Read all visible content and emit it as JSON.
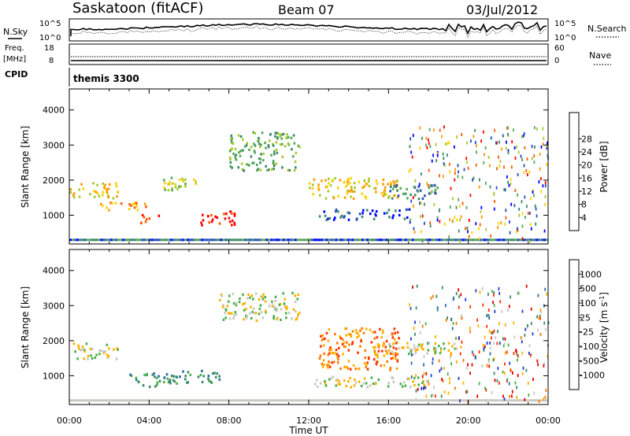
{
  "header": {
    "station": "Saskatoon (fitACF)",
    "beam": "Beam 07",
    "date": "03/Jul/2012"
  },
  "panels": {
    "nsky_label": "N.Sky",
    "nsearch_label": "N.Search",
    "noise_ticks": [
      "10^5",
      "10^0"
    ],
    "freq_label_line1": "Freq.",
    "freq_label_line2": "[MHz]",
    "freq_ticks": [
      "18",
      "8"
    ],
    "nave_ticks": [
      "60",
      "0"
    ],
    "nave_label": "Nave",
    "cpid_label": "CPID",
    "cpid_value": "themis 3300"
  },
  "chart_data": [
    {
      "type": "heatmap",
      "name": "power",
      "xlabel": "",
      "ylabel": "Slant Range [km]",
      "xlim": [
        0,
        24
      ],
      "ylim": [
        180,
        4600
      ],
      "x_ticks": [
        0,
        4,
        8,
        12,
        16,
        20,
        24
      ],
      "y_ticks": [
        1000,
        2000,
        3000,
        4000
      ],
      "colorbar": {
        "label": "Power [dB]",
        "ticks": [
          "4",
          "8",
          "12",
          "16",
          "20",
          "24",
          "28"
        ],
        "colors": [
          "#0000ff",
          "#2450b8",
          "#3a8a6a",
          "#55a855",
          "#a8c830",
          "#ffd000",
          "#ff9a00",
          "#ff5a00",
          "#ff0000"
        ]
      },
      "echo_bands": [
        {
          "t0": 0.0,
          "t1": 2.4,
          "r0": 1500,
          "r1": 1950,
          "level": 5
        },
        {
          "t0": 1.5,
          "t1": 4.0,
          "r0": 1150,
          "r1": 1400,
          "level": 6
        },
        {
          "t0": 3.5,
          "t1": 4.5,
          "r0": 800,
          "r1": 1050,
          "level": 8
        },
        {
          "t0": 6.5,
          "t1": 8.5,
          "r0": 750,
          "r1": 1150,
          "level": 8
        },
        {
          "t0": 4.5,
          "t1": 6.5,
          "r0": 1700,
          "r1": 2100,
          "level": 4
        },
        {
          "t0": 8.0,
          "t1": 11.5,
          "r0": 2300,
          "r1": 3400,
          "level": 3
        },
        {
          "t0": 12.0,
          "t1": 16.5,
          "r0": 1500,
          "r1": 2100,
          "level": 5
        },
        {
          "t0": 16.0,
          "t1": 18.5,
          "r0": 1500,
          "r1": 1900,
          "level": 2
        },
        {
          "t0": 12.5,
          "t1": 17.0,
          "r0": 900,
          "r1": 1200,
          "level": 1
        }
      ]
    },
    {
      "type": "heatmap",
      "name": "velocity",
      "xlabel": "Time UT",
      "ylabel": "Slant Range [km]",
      "xlim": [
        0,
        24
      ],
      "ylim": [
        180,
        4600
      ],
      "x_tick_labels": [
        "00:00",
        "04:00",
        "08:00",
        "12:00",
        "16:00",
        "20:00",
        "00:00"
      ],
      "y_ticks": [
        1000,
        2000,
        3000,
        4000
      ],
      "colorbar": {
        "label": "Velocity [m s^-1]",
        "ticks": [
          "1000",
          "500",
          "100",
          "25",
          "-25",
          "-100",
          "-500",
          "-1000"
        ],
        "colors": [
          "#1e3cc8",
          "#2a6aa8",
          "#3a8a6a",
          "#48b048",
          "#c8c8c0",
          "#ffb000",
          "#ff7a00",
          "#ff3000",
          "#e00000"
        ]
      },
      "echo_bands": [
        {
          "t0": 0.0,
          "t1": 2.4,
          "r0": 1500,
          "r1": 1950,
          "level": 4
        },
        {
          "t0": 3.0,
          "t1": 5.0,
          "r0": 700,
          "r1": 1100,
          "level": 2
        },
        {
          "t0": 5.0,
          "t1": 7.5,
          "r0": 800,
          "r1": 1200,
          "level": 2
        },
        {
          "t0": 7.5,
          "t1": 11.5,
          "r0": 2600,
          "r1": 3400,
          "level": 4
        },
        {
          "t0": 12.5,
          "t1": 16.5,
          "r0": 1200,
          "r1": 2400,
          "level": 6
        },
        {
          "t0": 16.0,
          "t1": 19.5,
          "r0": 1600,
          "r1": 2000,
          "level": 4
        },
        {
          "t0": 12.0,
          "t1": 18.0,
          "r0": 700,
          "r1": 1000,
          "level": 4
        }
      ]
    }
  ]
}
